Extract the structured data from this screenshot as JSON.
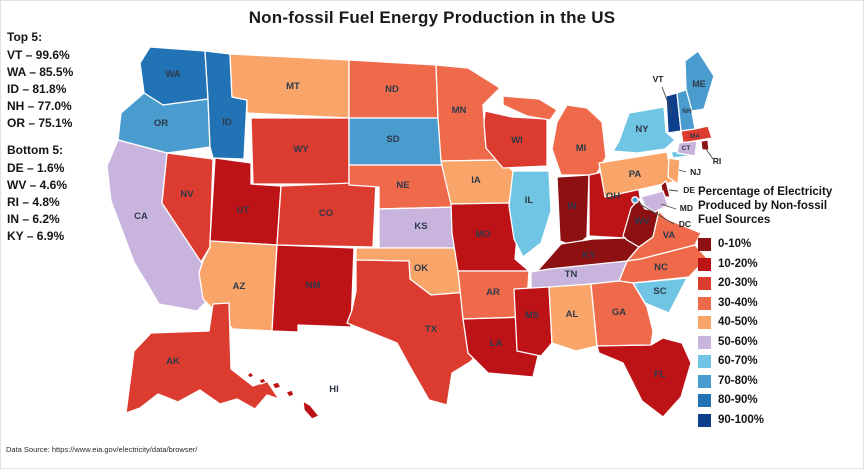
{
  "title": "Non-fossil Fuel Energy Production in the US",
  "annotations": {
    "top5": {
      "heading": "Top 5:",
      "items": [
        "VT – 99.6%",
        "WA – 85.5%",
        "ID – 81.8%",
        "NH – 77.0%",
        "OR – 75.1%"
      ]
    },
    "bottom5": {
      "heading": "Bottom 5:",
      "items": [
        "DE – 1.6%",
        "WV – 4.6%",
        "RI – 4.8%",
        "IN – 6.2%",
        "KY – 6.9%"
      ]
    }
  },
  "legend": {
    "title_lines": [
      "Percentage of Electricity",
      "Produced by Non-fossil",
      "Fuel Sources"
    ]
  },
  "source": "Data Source: https://www.eia.gov/electricity/data/browser/",
  "chart_data": {
    "type": "choropleth",
    "title": "Non-fossil Fuel Energy Production in the US",
    "metric": "Percentage of electricity produced by non-fossil fuel sources",
    "legend_title": "Percentage of Electricity Produced by Non-fossil Fuel Sources",
    "bins": [
      {
        "range": "0-10%",
        "color": "#8d1013"
      },
      {
        "range": "10-20%",
        "color": "#be1316"
      },
      {
        "range": "20-30%",
        "color": "#dc3b30"
      },
      {
        "range": "30-40%",
        "color": "#ef6a4b"
      },
      {
        "range": "40-50%",
        "color": "#f9a469"
      },
      {
        "range": "50-60%",
        "color": "#c9b4dd"
      },
      {
        "range": "60-70%",
        "color": "#70c4e4"
      },
      {
        "range": "70-80%",
        "color": "#4a9cce"
      },
      {
        "range": "80-90%",
        "color": "#2273b5"
      },
      {
        "range": "90-100%",
        "color": "#0d3f8d"
      }
    ],
    "states": [
      {
        "id": "WA",
        "range": "80-90%"
      },
      {
        "id": "OR",
        "range": "70-80%"
      },
      {
        "id": "CA",
        "range": "50-60%"
      },
      {
        "id": "NV",
        "range": "20-30%"
      },
      {
        "id": "ID",
        "range": "80-90%"
      },
      {
        "id": "MT",
        "range": "40-50%"
      },
      {
        "id": "WY",
        "range": "20-30%"
      },
      {
        "id": "UT",
        "range": "10-20%"
      },
      {
        "id": "CO",
        "range": "20-30%"
      },
      {
        "id": "AZ",
        "range": "40-50%"
      },
      {
        "id": "NM",
        "range": "10-20%"
      },
      {
        "id": "ND",
        "range": "30-40%"
      },
      {
        "id": "SD",
        "range": "70-80%"
      },
      {
        "id": "NE",
        "range": "30-40%"
      },
      {
        "id": "KS",
        "range": "50-60%"
      },
      {
        "id": "OK",
        "range": "40-50%"
      },
      {
        "id": "TX",
        "range": "20-30%"
      },
      {
        "id": "MN",
        "range": "30-40%"
      },
      {
        "id": "IA",
        "range": "40-50%"
      },
      {
        "id": "MO",
        "range": "10-20%"
      },
      {
        "id": "WI",
        "range": "20-30%"
      },
      {
        "id": "IL",
        "range": "60-70%"
      },
      {
        "id": "MI",
        "range": "30-40%"
      },
      {
        "id": "IN",
        "range": "0-10%"
      },
      {
        "id": "OH",
        "range": "10-20%"
      },
      {
        "id": "KY",
        "range": "0-10%"
      },
      {
        "id": "WV",
        "range": "0-10%"
      },
      {
        "id": "VA",
        "range": "30-40%"
      },
      {
        "id": "NC",
        "range": "30-40%"
      },
      {
        "id": "TN",
        "range": "50-60%"
      },
      {
        "id": "AR",
        "range": "30-40%"
      },
      {
        "id": "LA",
        "range": "10-20%"
      },
      {
        "id": "MS",
        "range": "10-20%"
      },
      {
        "id": "AL",
        "range": "40-50%"
      },
      {
        "id": "GA",
        "range": "30-40%"
      },
      {
        "id": "SC",
        "range": "60-70%"
      },
      {
        "id": "FL",
        "range": "10-20%"
      },
      {
        "id": "PA",
        "range": "40-50%"
      },
      {
        "id": "NY",
        "range": "60-70%"
      },
      {
        "id": "NJ",
        "range": "40-50%"
      },
      {
        "id": "VT",
        "range": "90-100%"
      },
      {
        "id": "NH",
        "range": "70-80%"
      },
      {
        "id": "ME",
        "range": "70-80%"
      },
      {
        "id": "MA",
        "range": "20-30%"
      },
      {
        "id": "CT",
        "range": "50-60%"
      },
      {
        "id": "RI",
        "range": "0-10%"
      },
      {
        "id": "DE",
        "range": "0-10%"
      },
      {
        "id": "MD",
        "range": "50-60%"
      },
      {
        "id": "DC",
        "range": "70-80%"
      },
      {
        "id": "AK",
        "range": "20-30%"
      },
      {
        "id": "HI",
        "range": "10-20%"
      }
    ],
    "top5": [
      {
        "state": "VT",
        "value": 99.6
      },
      {
        "state": "WA",
        "value": 85.5
      },
      {
        "state": "ID",
        "value": 81.8
      },
      {
        "state": "NH",
        "value": 77.0
      },
      {
        "state": "OR",
        "value": 75.1
      }
    ],
    "bottom5": [
      {
        "state": "DE",
        "value": 1.6
      },
      {
        "state": "WV",
        "value": 4.6
      },
      {
        "state": "RI",
        "value": 4.8
      },
      {
        "state": "IN",
        "value": 6.2
      },
      {
        "state": "KY",
        "value": 6.9
      }
    ]
  }
}
